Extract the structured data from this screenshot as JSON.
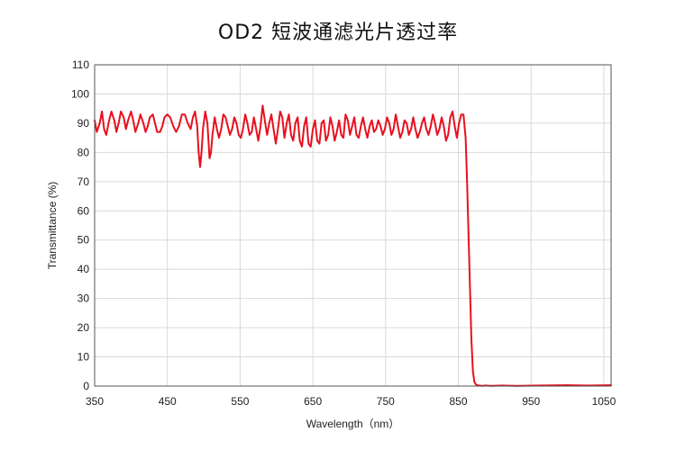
{
  "chart_data": {
    "type": "line",
    "title": "OD2 短波通滤光片透过率",
    "xlabel": "Wavelength（nm）",
    "ylabel": "Transmittance (%)",
    "xlim": [
      350,
      1060
    ],
    "ylim": [
      0,
      110
    ],
    "x_ticks": [
      350,
      450,
      550,
      650,
      750,
      850,
      950,
      1050
    ],
    "y_ticks": [
      0,
      10,
      20,
      30,
      40,
      50,
      60,
      70,
      80,
      90,
      100,
      110
    ],
    "grid": true,
    "legend": "none",
    "line_color": "#e8101e",
    "series": [
      {
        "x": [
          350,
          353,
          357,
          360,
          363,
          366,
          370,
          373,
          377,
          380,
          383,
          386,
          390,
          393,
          396,
          400,
          403,
          406,
          410,
          413,
          417,
          420,
          423,
          426,
          430,
          433,
          436,
          440,
          443,
          446,
          450,
          454,
          458,
          462,
          466,
          470,
          474,
          478,
          482,
          485,
          488,
          491,
          493,
          495,
          497,
          499,
          502,
          505,
          508,
          510,
          512,
          515,
          518,
          521,
          524,
          527,
          530,
          533,
          536,
          539,
          542,
          545,
          548,
          551,
          554,
          557,
          560,
          563,
          566,
          569,
          572,
          575,
          578,
          581,
          584,
          587,
          590,
          593,
          596,
          599,
          602,
          605,
          608,
          611,
          614,
          617,
          620,
          623,
          626,
          629,
          632,
          635,
          638,
          641,
          644,
          647,
          650,
          653,
          656,
          659,
          662,
          665,
          668,
          671,
          674,
          677,
          680,
          683,
          686,
          689,
          692,
          695,
          698,
          701,
          704,
          707,
          710,
          713,
          716,
          719,
          722,
          725,
          728,
          731,
          734,
          737,
          740,
          743,
          746,
          749,
          752,
          755,
          758,
          761,
          764,
          767,
          770,
          773,
          776,
          779,
          782,
          785,
          788,
          791,
          794,
          797,
          800,
          803,
          806,
          809,
          812,
          815,
          818,
          821,
          824,
          827,
          830,
          833,
          836,
          839,
          842,
          845,
          848,
          851,
          854,
          857,
          860,
          862,
          864,
          866,
          868,
          870,
          872,
          874,
          876,
          878,
          880,
          883,
          887,
          895,
          910,
          930,
          960,
          1000,
          1030,
          1060
        ],
        "y": [
          91,
          87,
          90,
          94,
          88,
          86,
          91,
          94,
          91,
          87,
          90,
          94,
          92,
          88,
          91,
          94,
          91,
          87,
          90,
          93,
          90,
          87,
          89,
          92,
          93,
          90,
          87,
          87,
          89,
          92,
          93,
          92,
          89,
          87,
          89,
          93,
          93,
          90,
          88,
          92,
          94,
          89,
          80,
          75,
          80,
          88,
          94,
          90,
          78,
          80,
          86,
          92,
          88,
          85,
          88,
          93,
          92,
          89,
          86,
          88,
          92,
          90,
          86,
          85,
          88,
          93,
          90,
          86,
          87,
          92,
          88,
          84,
          89,
          96,
          91,
          86,
          90,
          93,
          88,
          83,
          88,
          94,
          92,
          85,
          90,
          93,
          86,
          84,
          90,
          92,
          84,
          82,
          89,
          92,
          83,
          82,
          88,
          91,
          84,
          83,
          90,
          91,
          84,
          86,
          92,
          89,
          84,
          87,
          91,
          86,
          85,
          93,
          91,
          86,
          89,
          92,
          86,
          85,
          89,
          92,
          88,
          85,
          89,
          91,
          87,
          88,
          91,
          89,
          86,
          88,
          92,
          90,
          86,
          88,
          93,
          89,
          85,
          87,
          91,
          90,
          86,
          88,
          92,
          88,
          85,
          87,
          90,
          92,
          88,
          86,
          89,
          93,
          90,
          86,
          88,
          92,
          89,
          84,
          86,
          92,
          94,
          89,
          85,
          90,
          93,
          93,
          85,
          70,
          52,
          34,
          16,
          5,
          1.5,
          0.6,
          0.3,
          0.2,
          0.15,
          0.1,
          0.2,
          0.1,
          0.2,
          0.1,
          0.2,
          0.3,
          0.2,
          0.3
        ]
      }
    ]
  }
}
